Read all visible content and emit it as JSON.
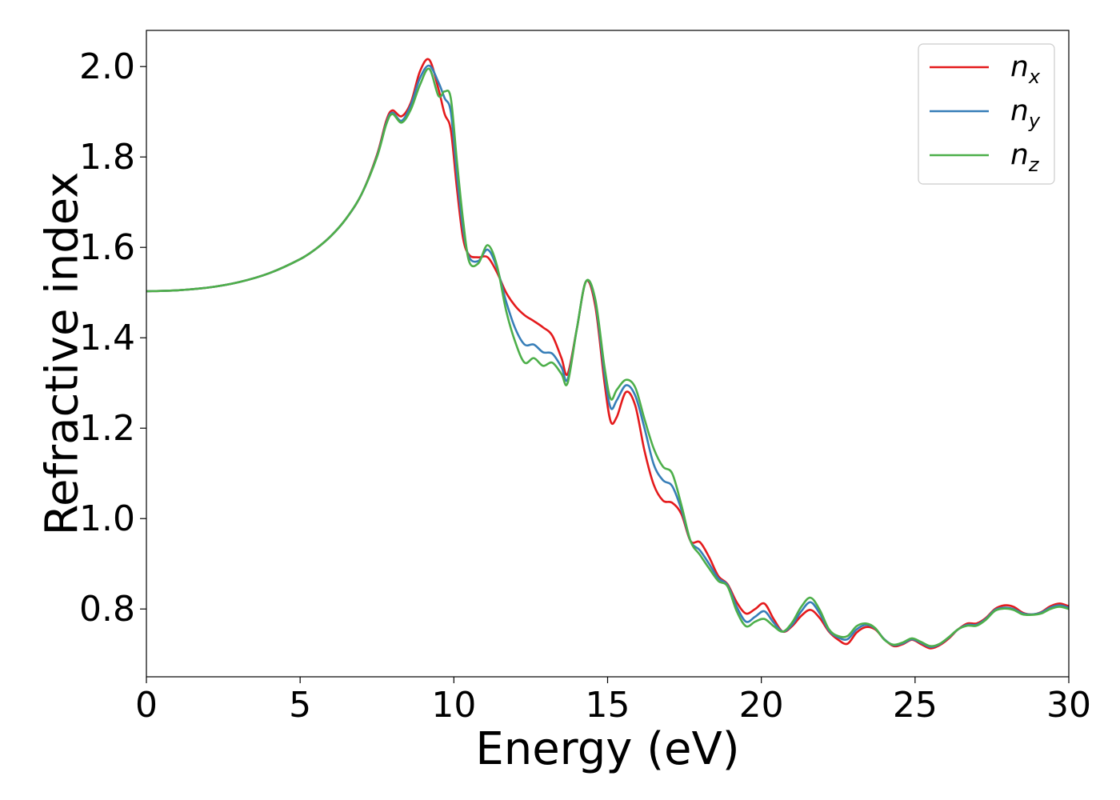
{
  "chart_data": {
    "type": "line",
    "xlabel": "Energy (eV)",
    "ylabel": "Refractive index",
    "xlim": [
      0,
      30
    ],
    "ylim": [
      0.65,
      2.08
    ],
    "xticks": [
      "0",
      "5",
      "10",
      "15",
      "20",
      "25",
      "30"
    ],
    "yticks": [
      "0.8",
      "1.0",
      "1.2",
      "1.4",
      "1.6",
      "1.8",
      "2.0"
    ],
    "grid": false,
    "legend_position": "top-right",
    "series": [
      {
        "name": "n_x",
        "label_base": "n",
        "label_sub": "x",
        "color": "#e41a1c",
        "points": [
          [
            0,
            1.503
          ],
          [
            1,
            1.505
          ],
          [
            2,
            1.511
          ],
          [
            3,
            1.523
          ],
          [
            4,
            1.543
          ],
          [
            5,
            1.574
          ],
          [
            5.5,
            1.596
          ],
          [
            6,
            1.625
          ],
          [
            6.5,
            1.664
          ],
          [
            7,
            1.718
          ],
          [
            7.5,
            1.805
          ],
          [
            7.8,
            1.88
          ],
          [
            8.0,
            1.903
          ],
          [
            8.3,
            1.89
          ],
          [
            8.6,
            1.92
          ],
          [
            8.9,
            1.99
          ],
          [
            9.2,
            2.015
          ],
          [
            9.5,
            1.95
          ],
          [
            9.7,
            1.895
          ],
          [
            9.9,
            1.86
          ],
          [
            10.1,
            1.73
          ],
          [
            10.3,
            1.62
          ],
          [
            10.5,
            1.583
          ],
          [
            10.8,
            1.578
          ],
          [
            11.1,
            1.578
          ],
          [
            11.4,
            1.545
          ],
          [
            11.7,
            1.5
          ],
          [
            12.0,
            1.47
          ],
          [
            12.3,
            1.45
          ],
          [
            12.6,
            1.437
          ],
          [
            12.9,
            1.423
          ],
          [
            13.2,
            1.405
          ],
          [
            13.5,
            1.355
          ],
          [
            13.7,
            1.32
          ],
          [
            14.0,
            1.42
          ],
          [
            14.3,
            1.525
          ],
          [
            14.6,
            1.47
          ],
          [
            14.9,
            1.3
          ],
          [
            15.1,
            1.215
          ],
          [
            15.3,
            1.225
          ],
          [
            15.6,
            1.28
          ],
          [
            15.9,
            1.25
          ],
          [
            16.2,
            1.15
          ],
          [
            16.5,
            1.075
          ],
          [
            16.8,
            1.04
          ],
          [
            17.1,
            1.035
          ],
          [
            17.4,
            1.01
          ],
          [
            17.7,
            0.95
          ],
          [
            18.0,
            0.948
          ],
          [
            18.3,
            0.915
          ],
          [
            18.6,
            0.873
          ],
          [
            18.9,
            0.855
          ],
          [
            19.2,
            0.815
          ],
          [
            19.5,
            0.79
          ],
          [
            19.8,
            0.8
          ],
          [
            20.1,
            0.812
          ],
          [
            20.4,
            0.778
          ],
          [
            20.7,
            0.75
          ],
          [
            21.0,
            0.762
          ],
          [
            21.3,
            0.785
          ],
          [
            21.6,
            0.798
          ],
          [
            21.9,
            0.78
          ],
          [
            22.2,
            0.75
          ],
          [
            22.5,
            0.732
          ],
          [
            22.8,
            0.723
          ],
          [
            23.1,
            0.748
          ],
          [
            23.4,
            0.76
          ],
          [
            23.7,
            0.755
          ],
          [
            24.0,
            0.733
          ],
          [
            24.3,
            0.718
          ],
          [
            24.6,
            0.722
          ],
          [
            24.9,
            0.732
          ],
          [
            25.2,
            0.722
          ],
          [
            25.5,
            0.713
          ],
          [
            25.8,
            0.72
          ],
          [
            26.1,
            0.735
          ],
          [
            26.4,
            0.755
          ],
          [
            26.7,
            0.768
          ],
          [
            27.0,
            0.768
          ],
          [
            27.3,
            0.78
          ],
          [
            27.6,
            0.8
          ],
          [
            27.9,
            0.808
          ],
          [
            28.2,
            0.805
          ],
          [
            28.5,
            0.792
          ],
          [
            28.8,
            0.788
          ],
          [
            29.1,
            0.793
          ],
          [
            29.4,
            0.806
          ],
          [
            29.7,
            0.812
          ],
          [
            30.0,
            0.806
          ]
        ]
      },
      {
        "name": "n_y",
        "label_base": "n",
        "label_sub": "y",
        "color": "#377eb8",
        "points": [
          [
            0,
            1.503
          ],
          [
            1,
            1.505
          ],
          [
            2,
            1.511
          ],
          [
            3,
            1.523
          ],
          [
            4,
            1.543
          ],
          [
            5,
            1.574
          ],
          [
            5.5,
            1.596
          ],
          [
            6,
            1.625
          ],
          [
            6.5,
            1.664
          ],
          [
            7,
            1.718
          ],
          [
            7.5,
            1.802
          ],
          [
            7.8,
            1.875
          ],
          [
            8.0,
            1.898
          ],
          [
            8.3,
            1.88
          ],
          [
            8.6,
            1.915
          ],
          [
            8.9,
            1.975
          ],
          [
            9.2,
            2.002
          ],
          [
            9.5,
            1.965
          ],
          [
            9.7,
            1.93
          ],
          [
            9.9,
            1.9
          ],
          [
            10.1,
            1.76
          ],
          [
            10.3,
            1.64
          ],
          [
            10.5,
            1.578
          ],
          [
            10.8,
            1.57
          ],
          [
            11.1,
            1.595
          ],
          [
            11.4,
            1.555
          ],
          [
            11.7,
            1.48
          ],
          [
            12.0,
            1.42
          ],
          [
            12.3,
            1.385
          ],
          [
            12.6,
            1.385
          ],
          [
            12.9,
            1.368
          ],
          [
            13.2,
            1.365
          ],
          [
            13.5,
            1.335
          ],
          [
            13.7,
            1.308
          ],
          [
            14.0,
            1.42
          ],
          [
            14.3,
            1.525
          ],
          [
            14.6,
            1.48
          ],
          [
            14.9,
            1.32
          ],
          [
            15.1,
            1.245
          ],
          [
            15.3,
            1.262
          ],
          [
            15.6,
            1.295
          ],
          [
            15.9,
            1.272
          ],
          [
            16.2,
            1.2
          ],
          [
            16.5,
            1.12
          ],
          [
            16.8,
            1.085
          ],
          [
            17.1,
            1.072
          ],
          [
            17.4,
            1.02
          ],
          [
            17.7,
            0.95
          ],
          [
            18.0,
            0.93
          ],
          [
            18.3,
            0.9
          ],
          [
            18.6,
            0.868
          ],
          [
            18.9,
            0.853
          ],
          [
            19.2,
            0.805
          ],
          [
            19.5,
            0.772
          ],
          [
            19.8,
            0.783
          ],
          [
            20.1,
            0.795
          ],
          [
            20.4,
            0.77
          ],
          [
            20.7,
            0.75
          ],
          [
            21.0,
            0.765
          ],
          [
            21.3,
            0.795
          ],
          [
            21.6,
            0.815
          ],
          [
            21.9,
            0.79
          ],
          [
            22.2,
            0.752
          ],
          [
            22.5,
            0.737
          ],
          [
            22.8,
            0.733
          ],
          [
            23.1,
            0.755
          ],
          [
            23.4,
            0.765
          ],
          [
            23.7,
            0.757
          ],
          [
            24.0,
            0.733
          ],
          [
            24.3,
            0.72
          ],
          [
            24.6,
            0.724
          ],
          [
            24.9,
            0.733
          ],
          [
            25.2,
            0.725
          ],
          [
            25.5,
            0.716
          ],
          [
            25.8,
            0.722
          ],
          [
            26.1,
            0.737
          ],
          [
            26.4,
            0.755
          ],
          [
            26.7,
            0.765
          ],
          [
            27.0,
            0.765
          ],
          [
            27.3,
            0.778
          ],
          [
            27.6,
            0.798
          ],
          [
            27.9,
            0.803
          ],
          [
            28.2,
            0.8
          ],
          [
            28.5,
            0.79
          ],
          [
            28.8,
            0.788
          ],
          [
            29.1,
            0.792
          ],
          [
            29.4,
            0.803
          ],
          [
            29.7,
            0.808
          ],
          [
            30.0,
            0.803
          ]
        ]
      },
      {
        "name": "n_z",
        "label_base": "n",
        "label_sub": "z",
        "color": "#4daf4a",
        "points": [
          [
            0,
            1.503
          ],
          [
            1,
            1.505
          ],
          [
            2,
            1.511
          ],
          [
            3,
            1.523
          ],
          [
            4,
            1.543
          ],
          [
            5,
            1.574
          ],
          [
            5.5,
            1.596
          ],
          [
            6,
            1.625
          ],
          [
            6.5,
            1.664
          ],
          [
            7,
            1.718
          ],
          [
            7.5,
            1.8
          ],
          [
            7.8,
            1.872
          ],
          [
            8.0,
            1.895
          ],
          [
            8.3,
            1.876
          ],
          [
            8.6,
            1.905
          ],
          [
            8.9,
            1.96
          ],
          [
            9.2,
            1.995
          ],
          [
            9.5,
            1.935
          ],
          [
            9.7,
            1.945
          ],
          [
            9.9,
            1.93
          ],
          [
            10.1,
            1.79
          ],
          [
            10.3,
            1.66
          ],
          [
            10.5,
            1.568
          ],
          [
            10.8,
            1.565
          ],
          [
            11.1,
            1.605
          ],
          [
            11.4,
            1.56
          ],
          [
            11.7,
            1.46
          ],
          [
            12.0,
            1.39
          ],
          [
            12.3,
            1.345
          ],
          [
            12.6,
            1.355
          ],
          [
            12.9,
            1.338
          ],
          [
            13.2,
            1.345
          ],
          [
            13.5,
            1.32
          ],
          [
            13.7,
            1.3
          ],
          [
            14.0,
            1.42
          ],
          [
            14.3,
            1.525
          ],
          [
            14.6,
            1.485
          ],
          [
            14.9,
            1.335
          ],
          [
            15.1,
            1.265
          ],
          [
            15.3,
            1.285
          ],
          [
            15.6,
            1.307
          ],
          [
            15.9,
            1.29
          ],
          [
            16.2,
            1.22
          ],
          [
            16.5,
            1.155
          ],
          [
            16.8,
            1.115
          ],
          [
            17.1,
            1.1
          ],
          [
            17.4,
            1.03
          ],
          [
            17.7,
            0.95
          ],
          [
            18.0,
            0.92
          ],
          [
            18.3,
            0.89
          ],
          [
            18.6,
            0.862
          ],
          [
            18.9,
            0.85
          ],
          [
            19.2,
            0.795
          ],
          [
            19.5,
            0.762
          ],
          [
            19.8,
            0.772
          ],
          [
            20.1,
            0.778
          ],
          [
            20.4,
            0.762
          ],
          [
            20.7,
            0.75
          ],
          [
            21.0,
            0.77
          ],
          [
            21.3,
            0.805
          ],
          [
            21.6,
            0.825
          ],
          [
            21.9,
            0.798
          ],
          [
            22.2,
            0.755
          ],
          [
            22.5,
            0.74
          ],
          [
            22.8,
            0.74
          ],
          [
            23.1,
            0.762
          ],
          [
            23.4,
            0.768
          ],
          [
            23.7,
            0.758
          ],
          [
            24.0,
            0.732
          ],
          [
            24.3,
            0.721
          ],
          [
            24.6,
            0.726
          ],
          [
            24.9,
            0.735
          ],
          [
            25.2,
            0.727
          ],
          [
            25.5,
            0.718
          ],
          [
            25.8,
            0.723
          ],
          [
            26.1,
            0.738
          ],
          [
            26.4,
            0.755
          ],
          [
            26.7,
            0.763
          ],
          [
            27.0,
            0.763
          ],
          [
            27.3,
            0.776
          ],
          [
            27.6,
            0.796
          ],
          [
            27.9,
            0.801
          ],
          [
            28.2,
            0.798
          ],
          [
            28.5,
            0.788
          ],
          [
            28.8,
            0.787
          ],
          [
            29.1,
            0.79
          ],
          [
            29.4,
            0.8
          ],
          [
            29.7,
            0.805
          ],
          [
            30.0,
            0.8
          ]
        ]
      }
    ]
  }
}
